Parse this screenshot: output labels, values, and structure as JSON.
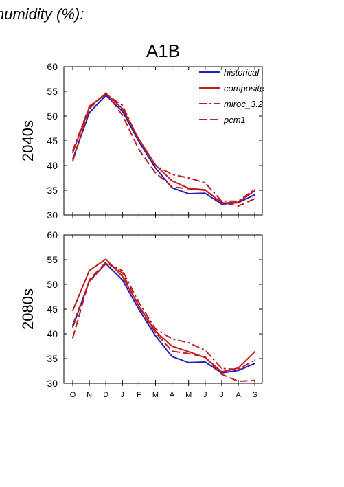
{
  "page": {
    "header": "humidity (%):"
  },
  "colors": {
    "historical": "#1f1fbf",
    "scenario": "#c01c1c",
    "axis": "#000000"
  },
  "chart_data": [
    {
      "type": "line",
      "title": "A1B",
      "ylabel": "2040s",
      "categories": [
        "O",
        "N",
        "D",
        "J",
        "F",
        "M",
        "A",
        "M",
        "J",
        "J",
        "A",
        "S"
      ],
      "ylim": [
        30,
        60
      ],
      "yticks": [
        30,
        35,
        40,
        45,
        50,
        55,
        60
      ],
      "legend_position": "top-right",
      "series": [
        {
          "name": "historical",
          "style": "solid",
          "color": "#1f1fbf",
          "values": [
            41.3,
            50.7,
            54.2,
            51.0,
            44.8,
            39.5,
            35.5,
            34.3,
            34.4,
            32.2,
            32.5,
            34.1
          ]
        },
        {
          "name": "composite",
          "style": "solid",
          "color": "#c01c1c",
          "values": [
            42.6,
            51.8,
            54.6,
            51.5,
            45.3,
            40.1,
            36.9,
            35.4,
            35.1,
            32.4,
            32.6,
            34.9
          ]
        },
        {
          "name": "miroc_3.2",
          "style": "dashdot",
          "color": "#c01c1c",
          "values": [
            43.0,
            52.0,
            54.4,
            52.2,
            45.0,
            40.0,
            38.2,
            37.5,
            36.5,
            32.8,
            32.8,
            35.2
          ]
        },
        {
          "name": "pcm1",
          "style": "dashed",
          "color": "#c01c1c",
          "values": [
            40.9,
            51.5,
            54.7,
            50.2,
            43.2,
            38.5,
            35.7,
            35.3,
            35.0,
            32.6,
            31.8,
            33.3
          ]
        }
      ]
    },
    {
      "type": "line",
      "title": "",
      "ylabel": "2080s",
      "categories": [
        "O",
        "N",
        "D",
        "J",
        "F",
        "M",
        "A",
        "M",
        "J",
        "J",
        "A",
        "S"
      ],
      "ylim": [
        30,
        60
      ],
      "yticks": [
        30,
        35,
        40,
        45,
        50,
        55,
        60
      ],
      "series": [
        {
          "name": "historical",
          "style": "solid",
          "color": "#1f1fbf",
          "values": [
            41.4,
            50.7,
            54.2,
            50.9,
            44.9,
            39.6,
            35.4,
            34.2,
            34.3,
            32.1,
            32.6,
            34.0
          ]
        },
        {
          "name": "composite",
          "style": "solid",
          "color": "#c01c1c",
          "values": [
            44.7,
            52.8,
            55.1,
            51.6,
            45.6,
            40.5,
            37.5,
            36.4,
            35.2,
            32.3,
            33.1,
            36.4
          ]
        },
        {
          "name": "miroc_3.2",
          "style": "dashdot",
          "color": "#c01c1c",
          "values": [
            41.8,
            50.6,
            54.2,
            52.8,
            46.3,
            41.0,
            39.0,
            38.2,
            36.7,
            33.0,
            32.8,
            34.7
          ]
        },
        {
          "name": "pcm1",
          "style": "dashed",
          "color": "#c01c1c",
          "values": [
            39.2,
            50.9,
            54.5,
            52.3,
            45.5,
            40.2,
            36.5,
            36.0,
            35.3,
            31.8,
            30.4,
            30.6
          ]
        }
      ]
    }
  ]
}
